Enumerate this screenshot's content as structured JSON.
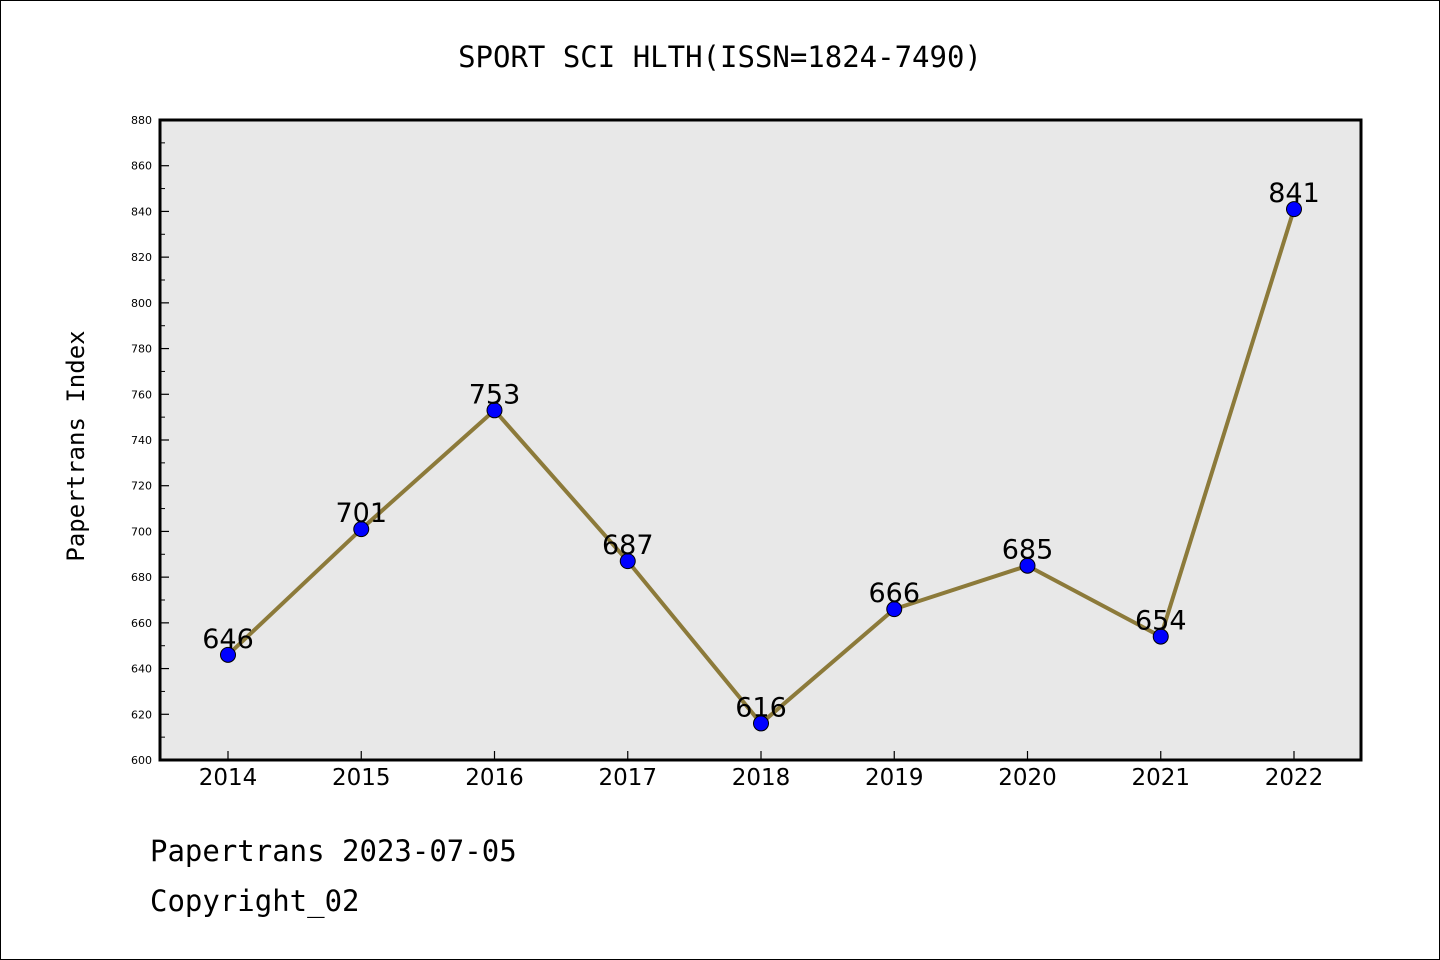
{
  "chart_data": {
    "type": "line",
    "title": "SPORT SCI HLTH(ISSN=1824-7490)",
    "xlabel": "",
    "ylabel": "Papertrans Index",
    "categories": [
      "2014",
      "2015",
      "2016",
      "2017",
      "2018",
      "2019",
      "2020",
      "2021",
      "2022"
    ],
    "series": [
      {
        "values": [
          646,
          701,
          753,
          687,
          616,
          666,
          685,
          654,
          841
        ]
      }
    ],
    "data_labels": [
      "646",
      "701",
      "753",
      "687",
      "616",
      "666",
      "685",
      "654",
      "841"
    ],
    "ylim": [
      600,
      880
    ],
    "y_ticks": [
      "600",
      "620",
      "640",
      "660",
      "680",
      "700",
      "720",
      "740",
      "760",
      "780",
      "800",
      "820",
      "840",
      "860",
      "880"
    ],
    "grid": false,
    "legend": "none",
    "colors": {
      "line": "#8c7a3a",
      "marker": "#0000ff",
      "plot_background": "#e8e8e8"
    }
  },
  "footer": {
    "date_text": "Papertrans 2023-07-05",
    "copyright_text": "Copyright_02"
  }
}
